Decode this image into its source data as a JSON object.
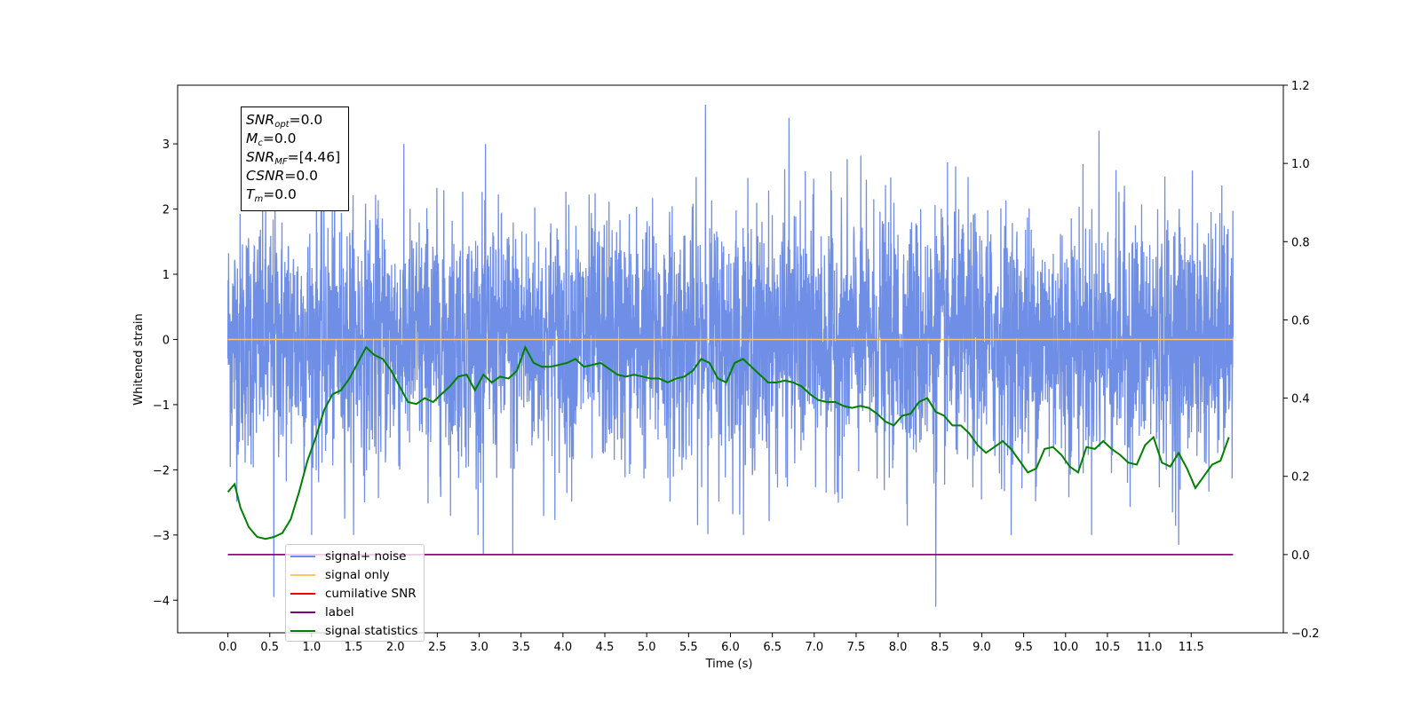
{
  "chart_data": {
    "type": "line",
    "xlabel": "Time (s)",
    "ylabel": "Whitened strain",
    "xlim": [
      -0.6,
      12.6
    ],
    "ylim": [
      -4.5,
      3.9
    ],
    "ylim_right": [
      -0.2,
      1.2
    ],
    "x_ticks": [
      "0.0",
      "0.5",
      "1.0",
      "1.5",
      "2.0",
      "2.5",
      "3.0",
      "3.5",
      "4.0",
      "4.5",
      "5.0",
      "5.5",
      "6.0",
      "6.5",
      "7.0",
      "7.5",
      "8.0",
      "8.5",
      "9.0",
      "9.5",
      "10.0",
      "10.5",
      "11.0",
      "11.5"
    ],
    "y_ticks": [
      "3",
      "2",
      "1",
      "0",
      "−1",
      "−2",
      "−3",
      "−4"
    ],
    "y_ticks_right": [
      "1.2",
      "1.0",
      "0.8",
      "0.6",
      "0.4",
      "0.2",
      "0.0",
      "−0.2"
    ],
    "legend_position": "lower-left",
    "series": [
      {
        "name": "signal+ noise",
        "color": "#6f8ee6",
        "axis": "left",
        "description_range": [
          -4.1,
          3.6
        ],
        "notable_spikes": [
          [
            0.55,
            -3.95
          ],
          [
            3.05,
            -3.3
          ],
          [
            3.4,
            -3.3
          ],
          [
            5.7,
            3.6
          ],
          [
            6.7,
            3.4
          ],
          [
            8.45,
            -4.1
          ],
          [
            10.4,
            3.2
          ],
          [
            11.35,
            -3.15
          ]
        ]
      },
      {
        "name": "signal only",
        "color": "#ffc66b",
        "axis": "left",
        "x": [
          0.0,
          12.0
        ],
        "y": [
          0.0,
          0.0
        ]
      },
      {
        "name": "cumilative SNR",
        "color": "#ff0000",
        "axis": "right",
        "x": [
          0.0,
          12.0
        ],
        "y": [
          0.0,
          0.0
        ]
      },
      {
        "name": "label",
        "color": "#800080",
        "axis": "right",
        "x": [
          0.0,
          12.0
        ],
        "y": [
          0.0,
          0.0
        ]
      },
      {
        "name": "signal statistics",
        "color": "#008000",
        "axis": "right",
        "x": [
          0.0,
          0.08,
          0.15,
          0.25,
          0.35,
          0.45,
          0.55,
          0.65,
          0.75,
          0.85,
          0.95,
          1.05,
          1.15,
          1.25,
          1.35,
          1.45,
          1.55,
          1.65,
          1.75,
          1.85,
          1.95,
          2.05,
          2.15,
          2.25,
          2.35,
          2.45,
          2.55,
          2.65,
          2.75,
          2.85,
          2.95,
          3.05,
          3.15,
          3.25,
          3.35,
          3.45,
          3.55,
          3.65,
          3.75,
          3.85,
          3.95,
          4.05,
          4.15,
          4.25,
          4.35,
          4.45,
          4.55,
          4.65,
          4.75,
          4.85,
          4.95,
          5.05,
          5.15,
          5.25,
          5.35,
          5.45,
          5.55,
          5.65,
          5.75,
          5.85,
          5.95,
          6.05,
          6.15,
          6.25,
          6.35,
          6.45,
          6.55,
          6.65,
          6.75,
          6.85,
          6.95,
          7.05,
          7.15,
          7.25,
          7.35,
          7.45,
          7.55,
          7.65,
          7.75,
          7.85,
          7.95,
          8.05,
          8.15,
          8.25,
          8.35,
          8.45,
          8.55,
          8.65,
          8.75,
          8.85,
          8.95,
          9.05,
          9.15,
          9.25,
          9.35,
          9.45,
          9.55,
          9.65,
          9.75,
          9.85,
          9.95,
          10.05,
          10.15,
          10.25,
          10.35,
          10.45,
          10.55,
          10.65,
          10.75,
          10.85,
          10.95,
          11.05,
          11.15,
          11.25,
          11.35,
          11.45,
          11.55,
          11.65,
          11.75,
          11.85,
          11.95
        ],
        "y": [
          0.16,
          0.18,
          0.12,
          0.07,
          0.045,
          0.04,
          0.045,
          0.055,
          0.09,
          0.16,
          0.24,
          0.3,
          0.37,
          0.41,
          0.42,
          0.45,
          0.49,
          0.53,
          0.51,
          0.5,
          0.47,
          0.43,
          0.39,
          0.385,
          0.4,
          0.39,
          0.41,
          0.43,
          0.455,
          0.46,
          0.42,
          0.46,
          0.44,
          0.455,
          0.45,
          0.47,
          0.53,
          0.49,
          0.48,
          0.48,
          0.485,
          0.49,
          0.5,
          0.48,
          0.485,
          0.49,
          0.475,
          0.46,
          0.455,
          0.46,
          0.455,
          0.45,
          0.45,
          0.44,
          0.45,
          0.455,
          0.47,
          0.5,
          0.49,
          0.45,
          0.44,
          0.49,
          0.5,
          0.48,
          0.46,
          0.44,
          0.44,
          0.445,
          0.44,
          0.43,
          0.41,
          0.395,
          0.39,
          0.39,
          0.38,
          0.375,
          0.38,
          0.375,
          0.36,
          0.34,
          0.33,
          0.355,
          0.36,
          0.39,
          0.4,
          0.365,
          0.355,
          0.33,
          0.33,
          0.31,
          0.28,
          0.26,
          0.275,
          0.29,
          0.27,
          0.24,
          0.21,
          0.22,
          0.27,
          0.275,
          0.255,
          0.225,
          0.21,
          0.275,
          0.27,
          0.29,
          0.27,
          0.255,
          0.235,
          0.23,
          0.28,
          0.3,
          0.235,
          0.225,
          0.26,
          0.22,
          0.17,
          0.2,
          0.23,
          0.24,
          0.3
        ]
      }
    ]
  },
  "info_box": {
    "snr_opt": "=0.0",
    "mc": "=0.0",
    "snr_mf": "=[4.46]",
    "csnr": "=0.0",
    "tm": "=0.0"
  },
  "legend": {
    "items": [
      {
        "label": "signal+ noise",
        "color": "#6f8ee6"
      },
      {
        "label": "signal only",
        "color": "#ffc66b"
      },
      {
        "label": "cumilative SNR",
        "color": "#ff0000"
      },
      {
        "label": "label",
        "color": "#800080"
      },
      {
        "label": "signal statistics",
        "color": "#008000"
      }
    ]
  }
}
